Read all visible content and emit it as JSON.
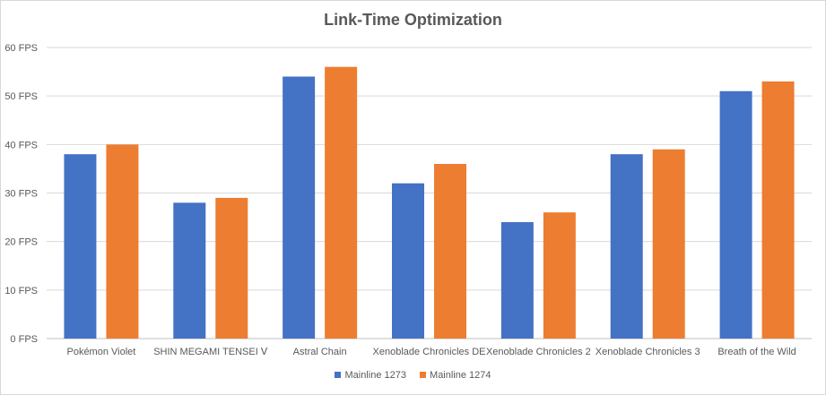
{
  "chart_data": {
    "type": "bar",
    "title": "Link-Time Optimization",
    "categories": [
      "Pokémon Violet",
      "SHIN MEGAMI TENSEI Ⅴ",
      "Astral Chain",
      "Xenoblade Chronicles DE",
      "Xenoblade Chronicles 2",
      "Xenoblade Chronicles 3",
      "Breath of the Wild"
    ],
    "series": [
      {
        "name": "Mainline 1273",
        "color": "#4472c4",
        "values": [
          38,
          28,
          54,
          32,
          24,
          38,
          51
        ]
      },
      {
        "name": "Mainline 1274",
        "color": "#ed7d31",
        "values": [
          40,
          29,
          56,
          36,
          26,
          39,
          53
        ]
      }
    ],
    "yticks": [
      "0 FPS",
      "10 FPS",
      "20 FPS",
      "30 FPS",
      "40 FPS",
      "50 FPS",
      "60 FPS"
    ],
    "ylim": [
      0,
      60
    ],
    "grid": true,
    "legend_position": "bottom"
  }
}
